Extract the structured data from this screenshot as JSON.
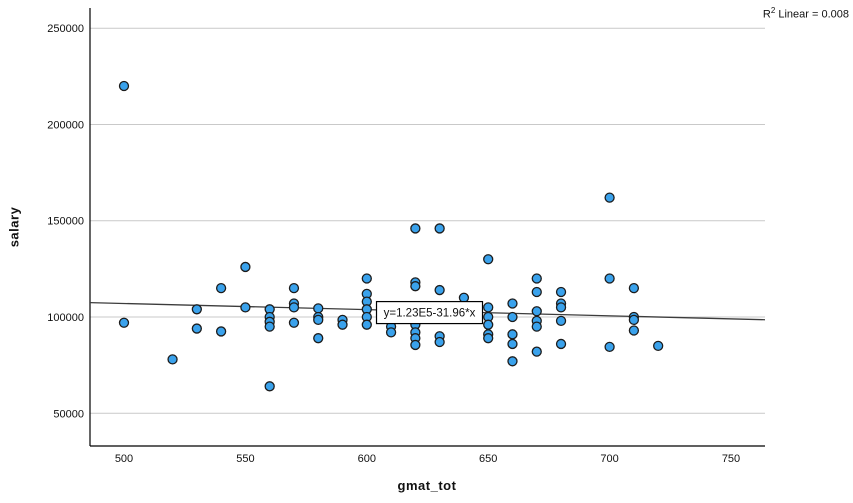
{
  "r_squared": {
    "base": "R",
    "sup": "2",
    "rest": " Linear = 0.008"
  },
  "colors": {
    "point_fill": "#3aa2ec",
    "point_stroke": "#1c1c1c",
    "gridline": "#c9c9c9",
    "axis": "#000000",
    "regression_line": "#3c3c3c",
    "annotation_border": "#000000",
    "annotation_fill": "#ffffff"
  },
  "chart_data": {
    "type": "scatter",
    "title": "",
    "xlabel": "gmat_tot",
    "ylabel": "salary",
    "xlim": [
      486,
      764
    ],
    "ylim": [
      33000,
      260500
    ],
    "x_ticks": [
      500,
      550,
      600,
      650,
      700,
      750
    ],
    "y_ticks": [
      50000,
      100000,
      150000,
      200000,
      250000
    ],
    "grid": "horizontal",
    "legend": "none",
    "r_squared": 0.008,
    "regression": {
      "equation_text": "y=1.23E5-31.96*x",
      "intercept": 123000,
      "slope": -31.96
    },
    "annotation": {
      "text": "y=1.23E5-31.96*x",
      "anchor_x": 604,
      "anchor_y": 102300
    },
    "points": [
      [
        500,
        220000
      ],
      [
        500,
        97000
      ],
      [
        520,
        78000
      ],
      [
        530,
        104000
      ],
      [
        530,
        94000
      ],
      [
        540,
        115000
      ],
      [
        540,
        92500
      ],
      [
        550,
        126000
      ],
      [
        550,
        105000
      ],
      [
        560,
        104000
      ],
      [
        560,
        100000
      ],
      [
        560,
        97500
      ],
      [
        560,
        95000
      ],
      [
        560,
        64000
      ],
      [
        570,
        115000
      ],
      [
        570,
        107000
      ],
      [
        570,
        105000
      ],
      [
        570,
        97000
      ],
      [
        580,
        104500
      ],
      [
        580,
        100000
      ],
      [
        580,
        98500
      ],
      [
        580,
        89000
      ],
      [
        590,
        98500
      ],
      [
        590,
        96000
      ],
      [
        600,
        120000
      ],
      [
        600,
        112000
      ],
      [
        600,
        108000
      ],
      [
        600,
        104000
      ],
      [
        600,
        100000
      ],
      [
        600,
        96000
      ],
      [
        610,
        95000
      ],
      [
        610,
        92000
      ],
      [
        620,
        146000
      ],
      [
        620,
        118000
      ],
      [
        620,
        116000
      ],
      [
        620,
        96000
      ],
      [
        620,
        92000
      ],
      [
        620,
        89000
      ],
      [
        620,
        85500
      ],
      [
        630,
        146000
      ],
      [
        630,
        114000
      ],
      [
        630,
        90000
      ],
      [
        630,
        87000
      ],
      [
        640,
        110000
      ],
      [
        650,
        130000
      ],
      [
        650,
        105000
      ],
      [
        650,
        100000
      ],
      [
        650,
        96000
      ],
      [
        650,
        91000
      ],
      [
        650,
        89000
      ],
      [
        660,
        107000
      ],
      [
        660,
        100000
      ],
      [
        660,
        91000
      ],
      [
        660,
        86000
      ],
      [
        660,
        77000
      ],
      [
        670,
        120000
      ],
      [
        670,
        113000
      ],
      [
        670,
        103000
      ],
      [
        670,
        98000
      ],
      [
        670,
        95000
      ],
      [
        670,
        82000
      ],
      [
        680,
        113000
      ],
      [
        680,
        107000
      ],
      [
        680,
        105000
      ],
      [
        680,
        98000
      ],
      [
        680,
        86000
      ],
      [
        700,
        162000
      ],
      [
        700,
        120000
      ],
      [
        700,
        84500
      ],
      [
        710,
        115000
      ],
      [
        710,
        100000
      ],
      [
        710,
        98500
      ],
      [
        710,
        93000
      ],
      [
        720,
        85000
      ]
    ]
  }
}
